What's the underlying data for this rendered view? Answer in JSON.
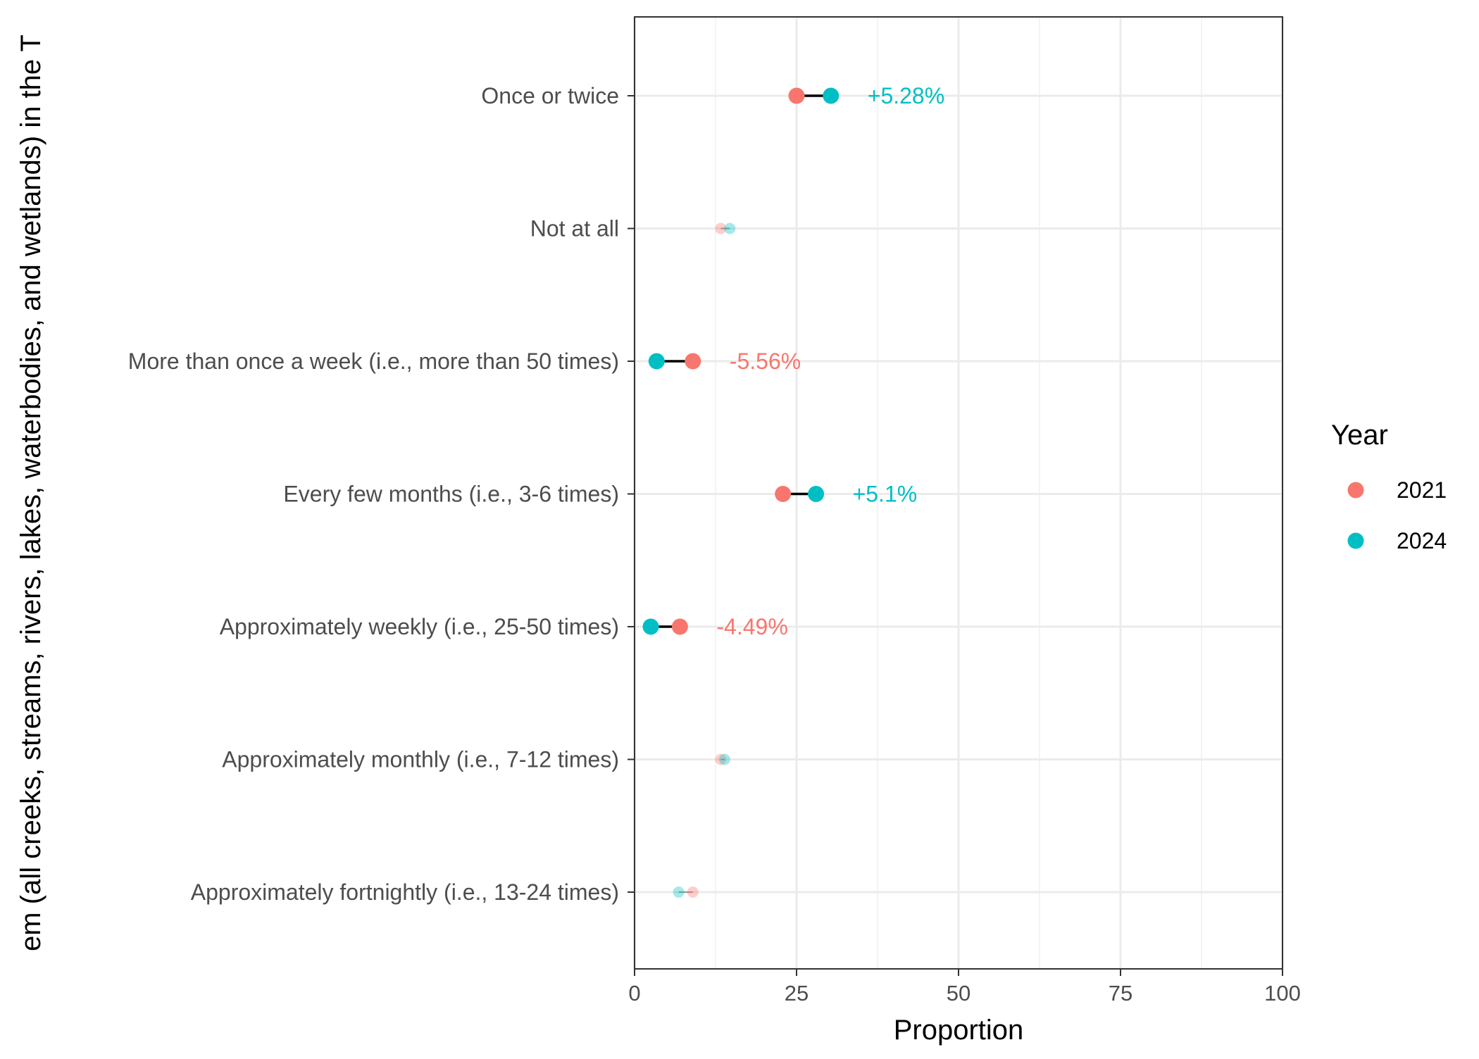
{
  "chart_data": {
    "type": "dumbbell",
    "xlabel": "Proportion",
    "ylabel": "em (all  creeks, streams, rivers, lakes, waterbodies, and wetlands) in the T",
    "xlim": [
      0,
      100
    ],
    "x_ticks": [
      "0",
      "25",
      "50",
      "75",
      "100"
    ],
    "grid": true,
    "legend": {
      "title": "Year",
      "position": "right",
      "entries": [
        {
          "label": "2021",
          "color": "#F8766D"
        },
        {
          "label": "2024",
          "color": "#00BFC4"
        }
      ]
    },
    "categories": [
      "Once or twice",
      "Not at all",
      "More than once a week (i.e., more than 50 times)",
      "Every few months (i.e., 3-6 times)",
      "Approximately weekly (i.e., 25-50 times)",
      "Approximately monthly (i.e., 7-12 times)",
      "Approximately fortnightly (i.e., 13-24 times)"
    ],
    "series": [
      {
        "name": "2021",
        "color": "#F8766D",
        "values": [
          25.0,
          13.3,
          9.0,
          22.9,
          7.0,
          13.3,
          9.0
        ]
      },
      {
        "name": "2024",
        "color": "#00BFC4",
        "values": [
          30.3,
          14.7,
          3.4,
          28.0,
          2.5,
          13.9,
          6.8
        ]
      }
    ],
    "highlighted": [
      true,
      false,
      true,
      true,
      true,
      false,
      false
    ],
    "diff_labels": [
      "+5.28%",
      "",
      "-5.56%",
      "+5.1%",
      "-4.49%",
      "",
      ""
    ]
  }
}
